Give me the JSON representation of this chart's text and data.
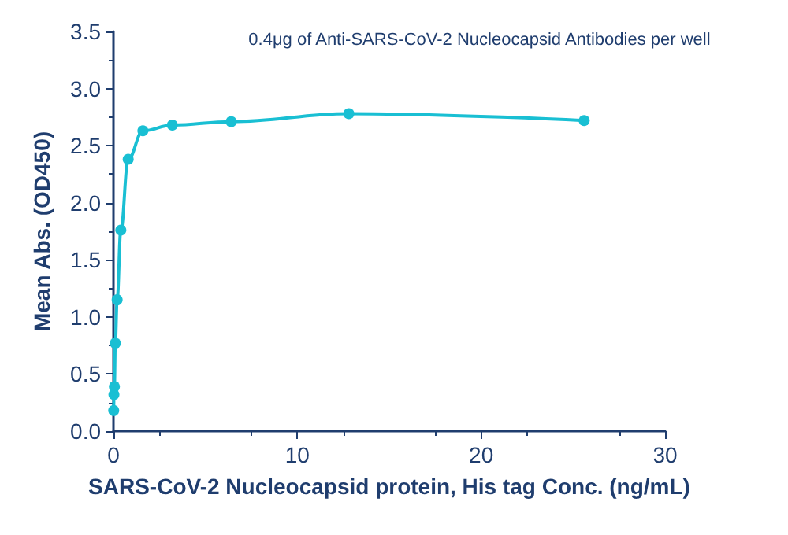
{
  "chart_data": {
    "type": "line",
    "annotations": [
      "0.4μg of Anti-SARS-CoV-2 Nucleocapsid Antibodies per well"
    ],
    "xlabel": "SARS-CoV-2 Nucleocapsid protein, His tag Conc. (ng/mL)",
    "ylabel": "Mean Abs. (OD450)",
    "x": [
      0.0125,
      0.025,
      0.05,
      0.1,
      0.2,
      0.4,
      0.8,
      1.6,
      3.2,
      6.4,
      12.8,
      25.6
    ],
    "series": [
      {
        "color": "#19bfd3",
        "values": [
          0.18,
          0.32,
          0.39,
          0.77,
          1.15,
          1.76,
          2.38,
          2.63,
          2.68,
          2.71,
          2.78,
          2.72
        ]
      }
    ],
    "xlim": [
      0,
      30
    ],
    "xticks": [
      0,
      10,
      20,
      30
    ],
    "ylim": [
      0,
      3.5
    ],
    "yticks": [
      {
        "value": 0,
        "label": "0.0"
      },
      {
        "value": 0.5,
        "label": "0.5"
      },
      {
        "value": 1,
        "label": "1.0"
      },
      {
        "value": 1.5,
        "label": "1.5"
      },
      {
        "value": 2,
        "label": "2.0"
      },
      {
        "value": 2.5,
        "label": "2.5"
      },
      {
        "value": 3,
        "label": "3.0"
      },
      {
        "value": 3.5,
        "label": "3.5"
      }
    ],
    "marker": "circle",
    "line_style": "solid",
    "grid": false
  }
}
